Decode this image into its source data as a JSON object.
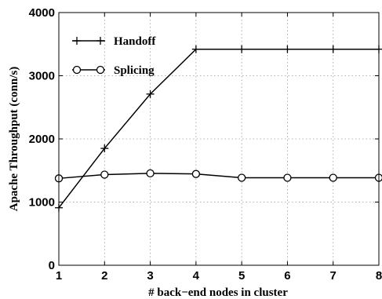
{
  "chart_data": {
    "type": "line",
    "xlabel": "# back−end nodes in cluster",
    "ylabel": "Apache Throughput (conn/s)",
    "x": [
      1,
      2,
      3,
      4,
      5,
      6,
      7,
      8
    ],
    "xlim": [
      1,
      8
    ],
    "ylim": [
      0,
      4000
    ],
    "xticks": [
      "1",
      "2",
      "3",
      "4",
      "5",
      "6",
      "7",
      "8"
    ],
    "yticks": [
      "0",
      "1000",
      "2000",
      "3000",
      "4000"
    ],
    "grid": true,
    "legend_position": "top-left",
    "series": [
      {
        "name": "Handoff",
        "marker": "plus",
        "values": [
          910,
          1850,
          2710,
          3420,
          3420,
          3420,
          3420,
          3420
        ]
      },
      {
        "name": "Splicing",
        "marker": "circle",
        "values": [
          1375,
          1435,
          1455,
          1445,
          1385,
          1385,
          1385,
          1385
        ]
      }
    ]
  }
}
